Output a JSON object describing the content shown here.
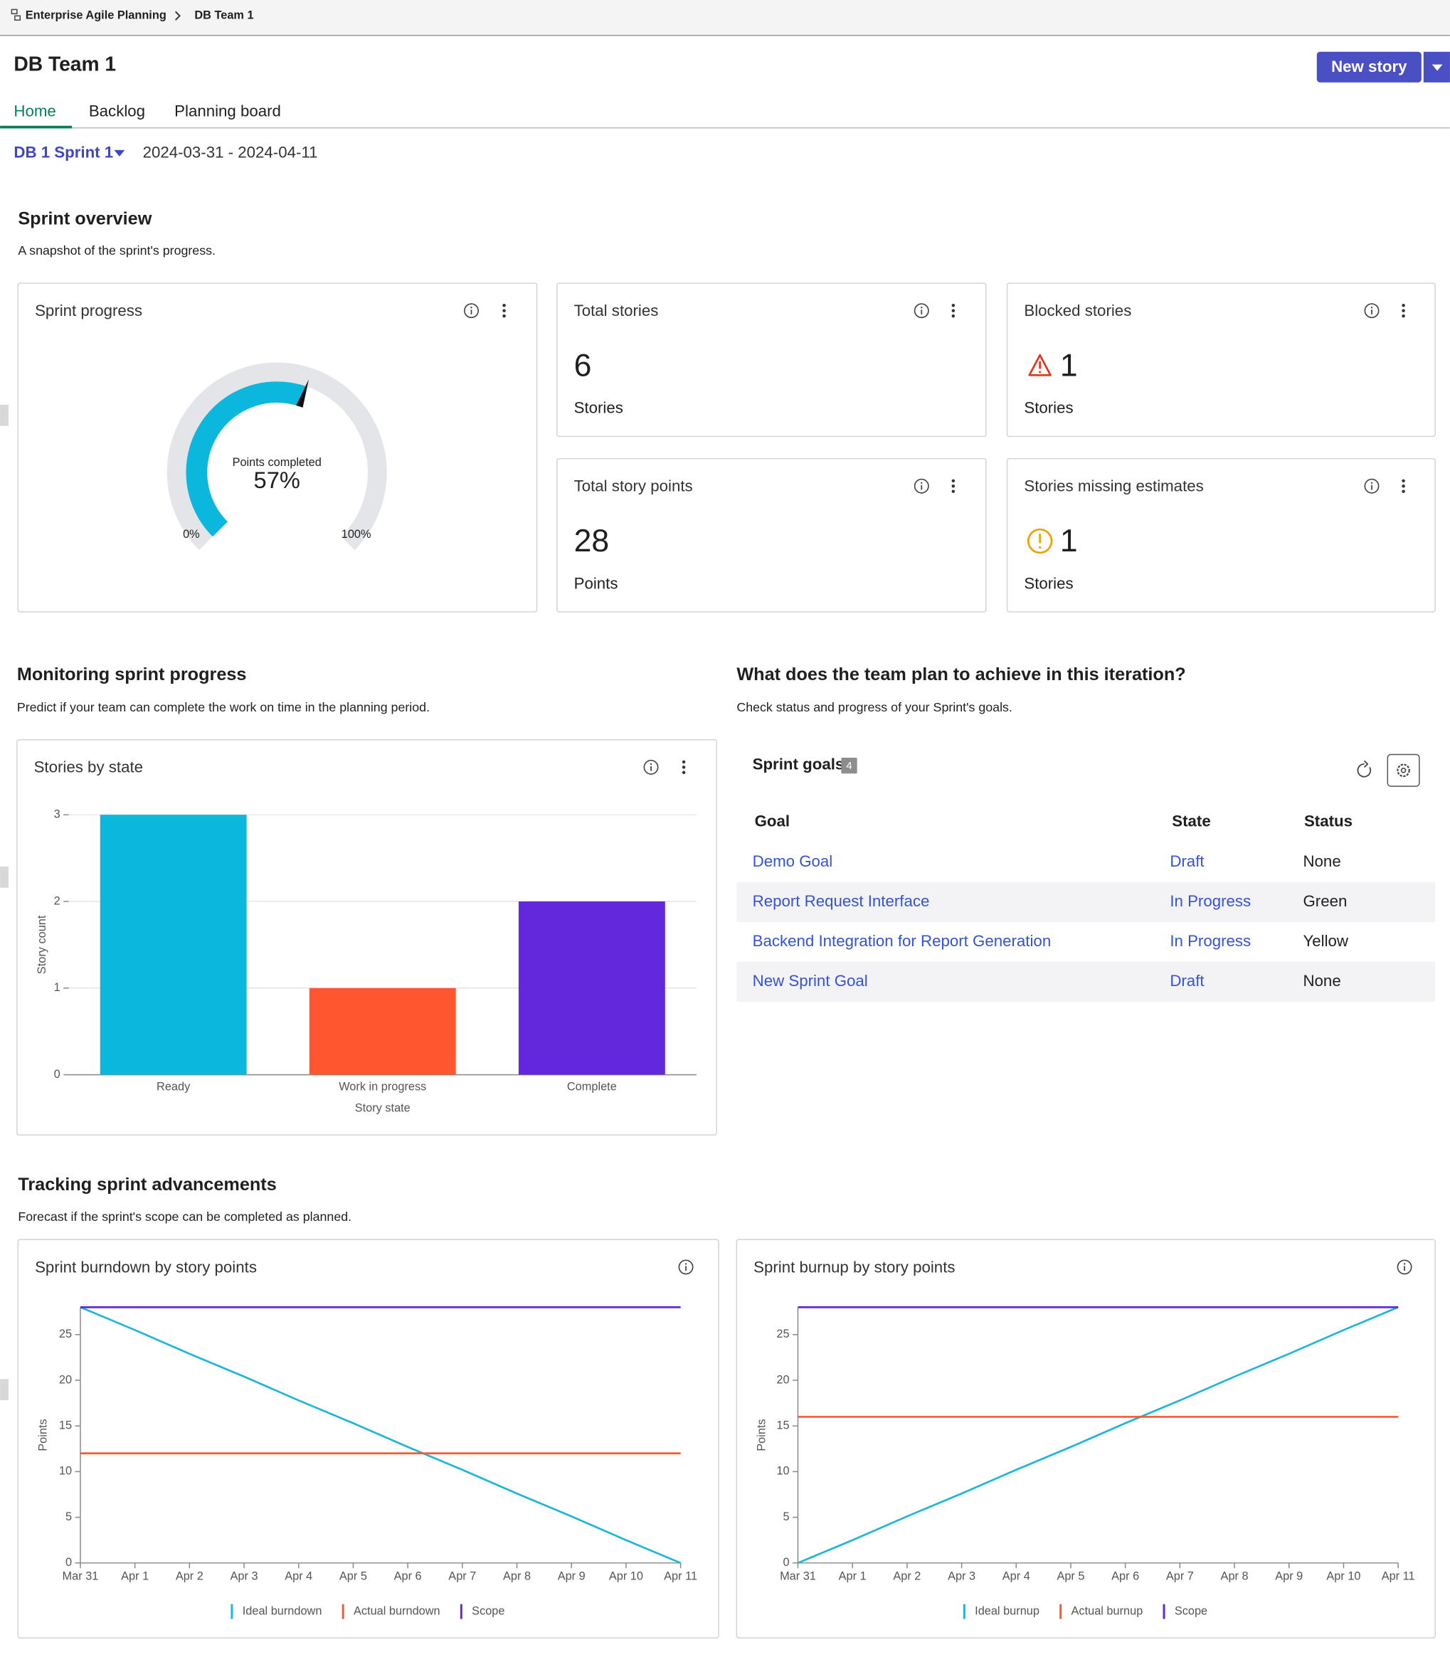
{
  "breadcrumb": [
    "Enterprise Agile Planning",
    "DB Team 1"
  ],
  "header": {
    "title": "DB Team 1",
    "button": "New story"
  },
  "tabs": [
    "Home",
    "Backlog",
    "Planning board"
  ],
  "sprint": {
    "name": "DB 1 Sprint 1",
    "dates": "2024-03-31 - 2024-04-11"
  },
  "overview": {
    "title": "Sprint overview",
    "subtitle": "A snapshot of the sprint's progress."
  },
  "sprint_progress": {
    "title": "Sprint progress",
    "label": "Points completed",
    "value": 57,
    "value_label": "57%",
    "ticks": [
      {
        "value": 0,
        "label": "0%"
      },
      {
        "value": 100,
        "label": "100%"
      }
    ],
    "color": "#0bb7dc"
  },
  "cards": [
    {
      "title": "Total stories",
      "value": 6,
      "unit": "Stories"
    },
    {
      "title": "Blocked stories",
      "value": 1,
      "unit": "Stories"
    },
    {
      "title": "Total story points",
      "value": 28,
      "unit": "Points"
    },
    {
      "title": "Stories missing estimates",
      "value": 1,
      "unit": "Stories"
    }
  ],
  "monitoring": {
    "title": "Monitoring sprint progress",
    "subtitle": "Predict if your team can complete the work on time in the planning period."
  },
  "stories_by_state": {
    "type": "bar",
    "title": "Stories by state",
    "categories": [
      "Ready",
      "Work in progress",
      "Complete"
    ],
    "values": [
      3,
      1,
      2
    ],
    "colors": [
      "#0bb7dc",
      "#ff5630",
      "#6328dc"
    ],
    "xlabel": "Story state",
    "ylabel": "Story count",
    "ylim": [
      0,
      3
    ],
    "yticks": [
      0,
      1,
      2,
      3
    ],
    "grid": true
  },
  "goals_section": {
    "title": "What does the team plan to achieve in this iteration?",
    "subtitle": "Check status and progress of your Sprint's goals."
  },
  "sprint_goals": {
    "title": "Sprint goals",
    "count": 4,
    "columns": [
      "Goal",
      "State",
      "Status"
    ],
    "rows": [
      [
        "Demo Goal",
        "Draft",
        "None"
      ],
      [
        "Report Request Interface",
        "In Progress",
        "Green"
      ],
      [
        "Backend Integration for Report Generation",
        "In Progress",
        "Yellow"
      ],
      [
        "New Sprint Goal",
        "Draft",
        "None"
      ]
    ]
  },
  "tracking": {
    "title": "Tracking sprint advancements",
    "subtitle": "Forecast if the sprint's scope can be completed as planned."
  },
  "burndown": {
    "type": "line",
    "title": "Sprint burndown by story points",
    "ylabel": "Points",
    "x": [
      "Mar 31",
      "Apr 1",
      "Apr 2",
      "Apr 3",
      "Apr 4",
      "Apr 5",
      "Apr 6",
      "Apr 7",
      "Apr 8",
      "Apr 9",
      "Apr 10",
      "Apr 11"
    ],
    "series": [
      {
        "name": "Ideal burndown",
        "color": "#1fb5d8",
        "values": [
          28,
          25.5,
          22.9,
          20.4,
          17.8,
          15.3,
          12.7,
          10.2,
          7.6,
          5.1,
          2.5,
          0
        ]
      },
      {
        "name": "Actual burndown",
        "color": "#ff5630",
        "values": [
          12,
          12,
          12,
          12,
          12,
          12,
          12,
          12,
          12,
          12,
          12,
          12
        ]
      },
      {
        "name": "Scope",
        "color": "#6328dc",
        "values": [
          28,
          28,
          28,
          28,
          28,
          28,
          28,
          28,
          28,
          28,
          28,
          28
        ]
      }
    ],
    "ylim": [
      0,
      28
    ],
    "yticks": [
      0,
      5,
      10,
      15,
      20,
      25
    ],
    "grid": false
  },
  "burnup": {
    "type": "line",
    "title": "Sprint burnup by story points",
    "ylabel": "Points",
    "x": [
      "Mar 31",
      "Apr 1",
      "Apr 2",
      "Apr 3",
      "Apr 4",
      "Apr 5",
      "Apr 6",
      "Apr 7",
      "Apr 8",
      "Apr 9",
      "Apr 10",
      "Apr 11"
    ],
    "series": [
      {
        "name": "Ideal burnup",
        "color": "#1fb5d8",
        "values": [
          0,
          2.5,
          5.1,
          7.6,
          10.2,
          12.7,
          15.3,
          17.8,
          20.4,
          22.9,
          25.5,
          28
        ]
      },
      {
        "name": "Actual burnup",
        "color": "#ff5630",
        "values": [
          16,
          16,
          16,
          16,
          16,
          16,
          16,
          16,
          16,
          16,
          16,
          16
        ]
      },
      {
        "name": "Scope",
        "color": "#6328dc",
        "values": [
          28,
          28,
          28,
          28,
          28,
          28,
          28,
          28,
          28,
          28,
          28,
          28
        ]
      }
    ],
    "ylim": [
      0,
      28
    ],
    "yticks": [
      0,
      5,
      10,
      15,
      20,
      25
    ],
    "grid": false
  }
}
